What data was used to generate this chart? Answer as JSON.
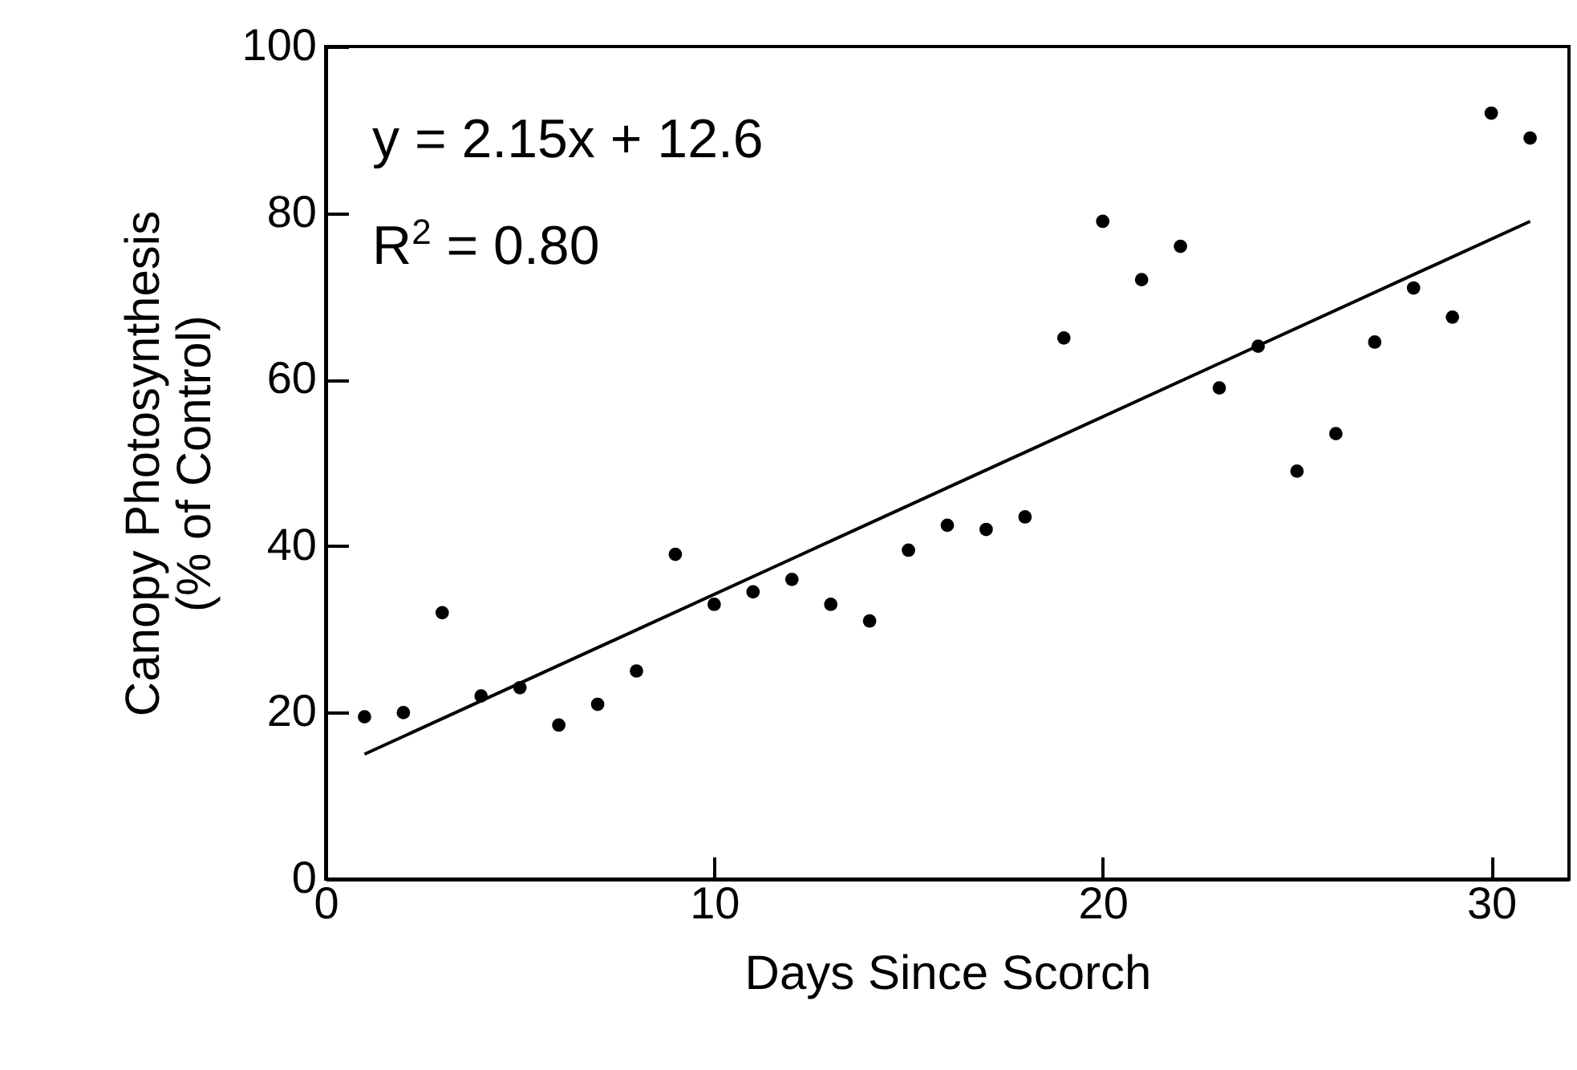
{
  "chart_data": {
    "type": "scatter",
    "xlabel": "Days Since Scorch",
    "ylabel": "Canopy Photosynthesis\n(% of Control)",
    "xlim": [
      0,
      32
    ],
    "xticks": [
      0,
      10,
      20,
      30
    ],
    "ylim": [
      0,
      100
    ],
    "yticks": [
      0,
      20,
      40,
      60,
      80,
      100
    ],
    "grid": false,
    "marker": "circle",
    "annotations": [
      "y = 2.15x + 12.6",
      "R$^{2}$ = 0.80"
    ],
    "series": [
      {
        "color": "#000000",
        "x": [
          1,
          2,
          3,
          4,
          5,
          6,
          7,
          8,
          9,
          10,
          11,
          12,
          13,
          14,
          15,
          16,
          17,
          18,
          19,
          20,
          21,
          22,
          23,
          24,
          25,
          26,
          27,
          28,
          29,
          30,
          31
        ],
        "values": [
          19.5,
          20,
          32,
          22,
          23,
          18.5,
          21,
          25,
          39,
          33,
          34.5,
          36,
          33,
          31,
          39.5,
          42.5,
          42,
          43.5,
          65,
          79,
          72,
          76,
          59,
          64,
          49,
          53.5,
          64.5,
          71,
          67.5,
          92,
          89
        ]
      },
      {
        "type": "line",
        "color": "#000000",
        "line_style": "solid",
        "marker": "none",
        "x": [
          1,
          31
        ],
        "values": [
          15,
          79
        ]
      }
    ]
  }
}
